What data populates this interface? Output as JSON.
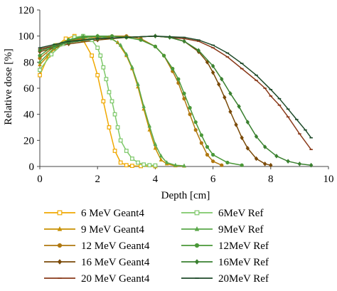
{
  "chart_data": {
    "type": "line",
    "title": "",
    "xlabel": "Depth [cm]",
    "ylabel": "Relative dose [%]",
    "xlim": [
      0,
      10
    ],
    "ylim": [
      0,
      120
    ],
    "xticks": [
      "0",
      "2",
      "4",
      "6",
      "8",
      "10"
    ],
    "yticks": [
      "0",
      "20",
      "40",
      "60",
      "80",
      "100",
      "120"
    ],
    "grid": false,
    "legend_position": "bottom",
    "series": [
      {
        "name": "6 MeV Geant4",
        "color": "#f0a800",
        "marker": "square-open",
        "kind": "geant4",
        "x": [
          0,
          0.3,
          0.6,
          0.9,
          1.2,
          1.5,
          1.8,
          2.0,
          2.2,
          2.4,
          2.6,
          2.8,
          3.0,
          3.2,
          3.5,
          4.0
        ],
        "y": [
          70,
          85,
          93,
          98,
          100,
          97,
          85,
          70,
          50,
          30,
          12,
          3,
          1,
          0.5,
          0.3,
          0.2
        ]
      },
      {
        "name": "9 MeV Geant4",
        "color": "#c89000",
        "marker": "triangle",
        "kind": "geant4",
        "x": [
          0,
          0.5,
          1.0,
          1.5,
          2.0,
          2.4,
          2.7,
          3.0,
          3.2,
          3.4,
          3.6,
          3.8,
          4.0,
          4.2,
          4.4,
          4.7,
          5.0
        ],
        "y": [
          78,
          90,
          96,
          99,
          100,
          99,
          95,
          85,
          75,
          61,
          44,
          28,
          14,
          5,
          2,
          0.5,
          0.3
        ]
      },
      {
        "name": "12 MeV Geant4",
        "color": "#b07810",
        "marker": "circle",
        "kind": "geant4",
        "x": [
          0,
          0.5,
          1.0,
          1.5,
          2.0,
          2.5,
          3.0,
          3.5,
          4.0,
          4.3,
          4.6,
          4.8,
          5.0,
          5.2,
          5.4,
          5.6,
          5.8,
          6.0,
          6.3
        ],
        "y": [
          83,
          92,
          96,
          98,
          99,
          100,
          100,
          98,
          92,
          85,
          73,
          64,
          52,
          40,
          28,
          18,
          9,
          4,
          1
        ]
      },
      {
        "name": "16 MeV Geant4",
        "color": "#7a4a08",
        "marker": "diamond",
        "kind": "geant4",
        "x": [
          0,
          1.0,
          2.0,
          3.0,
          4.0,
          4.5,
          5.0,
          5.5,
          5.8,
          6.0,
          6.2,
          6.4,
          6.6,
          6.8,
          7.0,
          7.2,
          7.5,
          7.8,
          8.0
        ],
        "y": [
          88,
          94,
          97,
          99,
          100,
          99,
          96,
          88,
          80,
          72,
          63,
          53,
          42,
          32,
          22,
          14,
          6,
          2,
          1
        ]
      },
      {
        "name": "20 MeV Geant4",
        "color": "#8a3a1a",
        "marker": "dash",
        "kind": "geant4",
        "x": [
          0,
          1.0,
          2.0,
          3.0,
          4.0,
          5.0,
          5.5,
          6.0,
          6.5,
          7.0,
          7.5,
          7.8,
          8.0,
          8.3,
          8.6,
          9.0,
          9.4
        ],
        "y": [
          90,
          95,
          98,
          99,
          100,
          98,
          96,
          91,
          84,
          75,
          66,
          60,
          54,
          47,
          38,
          25,
          13
        ]
      },
      {
        "name": "6MeV Ref",
        "color": "#7ec86a",
        "marker": "square-open",
        "kind": "ref",
        "x": [
          0,
          0.4,
          0.8,
          1.2,
          1.5,
          1.8,
          2.0,
          2.1,
          2.2,
          2.3,
          2.4,
          2.5,
          2.6,
          2.7,
          2.8,
          3.0,
          3.2,
          3.4,
          3.6,
          3.8,
          4.0
        ],
        "y": [
          74,
          86,
          94,
          99,
          100,
          97,
          91,
          85,
          76,
          67,
          57,
          50,
          40,
          30,
          20,
          12,
          6,
          3,
          1.5,
          1,
          0.8
        ]
      },
      {
        "name": "9MeV Ref",
        "color": "#5aa84a",
        "marker": "triangle",
        "kind": "ref",
        "x": [
          0,
          0.5,
          1.0,
          1.5,
          2.0,
          2.5,
          2.8,
          3.0,
          3.2,
          3.4,
          3.6,
          3.8,
          4.0,
          4.2,
          4.4,
          4.7,
          5.0
        ],
        "y": [
          80,
          91,
          97,
          100,
          100,
          98,
          93,
          86,
          76,
          63,
          46,
          31,
          17,
          8,
          3,
          1,
          0.5
        ]
      },
      {
        "name": "12MeV Ref",
        "color": "#4a9838",
        "marker": "circle",
        "kind": "ref",
        "x": [
          0,
          0.5,
          1.0,
          1.5,
          2.0,
          2.5,
          3.0,
          3.5,
          4.0,
          4.3,
          4.6,
          4.8,
          5.0,
          5.2,
          5.4,
          5.6,
          5.8,
          6.0,
          6.5,
          7.0
        ],
        "y": [
          85,
          93,
          97,
          99,
          100,
          100,
          99,
          97,
          92,
          85,
          75,
          67,
          56,
          45,
          34,
          24,
          15,
          9,
          3,
          1
        ]
      },
      {
        "name": "16MeV Ref",
        "color": "#3a8030",
        "marker": "diamond",
        "kind": "ref",
        "x": [
          0,
          1.0,
          2.0,
          3.0,
          4.0,
          4.5,
          5.0,
          5.5,
          6.0,
          6.3,
          6.6,
          6.9,
          7.2,
          7.5,
          7.8,
          8.2,
          8.6,
          9.0,
          9.4
        ],
        "y": [
          89,
          95,
          98,
          99,
          100,
          99,
          96,
          89,
          77,
          67,
          56,
          46,
          34,
          23,
          15,
          8,
          4,
          2,
          1
        ]
      },
      {
        "name": "20MeV Ref",
        "color": "#1e4a2a",
        "marker": "dash",
        "kind": "ref",
        "x": [
          0,
          1.0,
          2.0,
          3.0,
          4.0,
          5.0,
          5.5,
          6.0,
          6.5,
          7.0,
          7.5,
          8.0,
          8.3,
          8.6,
          8.9,
          9.2,
          9.4
        ],
        "y": [
          91,
          96,
          98,
          99,
          100,
          99,
          97,
          93,
          87,
          79,
          70,
          59,
          52,
          44,
          36,
          28,
          22
        ]
      }
    ]
  }
}
